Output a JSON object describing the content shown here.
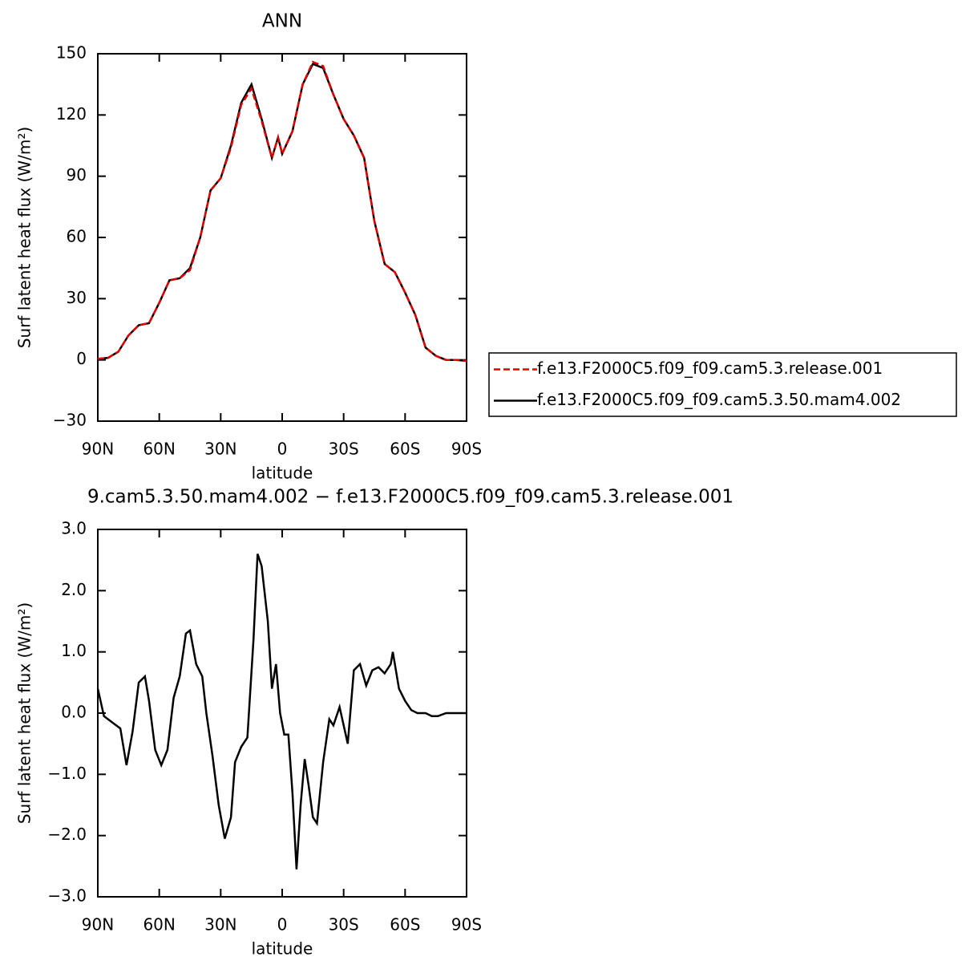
{
  "chart_data": [
    {
      "type": "line",
      "title": "ANN",
      "xlabel": "latitude",
      "ylabel": "Surf latent heat flux (W/m²)",
      "x": [
        90,
        85,
        80,
        75,
        70,
        65,
        60,
        55,
        50,
        45,
        40,
        35,
        30,
        25,
        20,
        15,
        10,
        5,
        2,
        0,
        -5,
        -10,
        -15,
        -20,
        -25,
        -30,
        -35,
        -40,
        -45,
        -50,
        -55,
        -60,
        -65,
        -70,
        -75,
        -80,
        -85,
        -90
      ],
      "series": [
        {
          "name": "f.e13.F2000C5.f09_f09.cam5.3.release.001",
          "color": "#e00000",
          "dashed": true,
          "values": [
            0.5,
            1,
            4,
            12,
            17,
            18,
            28,
            39,
            40,
            44,
            60,
            83,
            89,
            104,
            125,
            133,
            117,
            99,
            109,
            101,
            112,
            135,
            146,
            144,
            130,
            118,
            110,
            99,
            68,
            47,
            43,
            33,
            22,
            6,
            2,
            0,
            0,
            -0.5
          ]
        },
        {
          "name": "f.e13.F2000C5.f09_f09.cam5.3.50.mam4.002",
          "color": "#000000",
          "dashed": false,
          "values": [
            0.5,
            1,
            4,
            12,
            17,
            18,
            28,
            39,
            40,
            45,
            60,
            83,
            89,
            105,
            126,
            135,
            118,
            99,
            109,
            101,
            112,
            135,
            145,
            143,
            130,
            118,
            110,
            99,
            68,
            47,
            43,
            33,
            22,
            6,
            2,
            0,
            0,
            -0.5
          ]
        }
      ],
      "xlim": [
        90,
        -90
      ],
      "xticks": [
        {
          "value": 90,
          "label": "90N"
        },
        {
          "value": 60,
          "label": "60N"
        },
        {
          "value": 30,
          "label": "30N"
        },
        0,
        {
          "value": -30,
          "label": "30S"
        },
        {
          "value": -60,
          "label": "60S"
        },
        {
          "value": -90,
          "label": "90S"
        }
      ],
      "ylim": [
        -30,
        150
      ],
      "yticks": [
        {
          "value": -30,
          "label": "−30"
        },
        0,
        30,
        60,
        90,
        120,
        150
      ],
      "legend": "outside-right"
    },
    {
      "type": "line",
      "title": "9.cam5.3.50.mam4.002 − f.e13.F2000C5.f09_f09.cam5.3.release.001",
      "xlabel": "latitude",
      "ylabel": "Surf latent heat flux (W/m²)",
      "x": [
        90,
        87,
        83,
        79,
        76,
        73,
        70,
        67,
        65,
        62,
        59,
        56,
        53,
        50,
        47,
        45,
        42,
        39,
        37,
        34,
        31,
        28,
        25,
        23,
        20,
        17,
        14,
        12,
        10,
        7,
        5,
        3,
        1,
        -1,
        -3,
        -5,
        -7,
        -9,
        -11,
        -13,
        -15,
        -17,
        -20,
        -23,
        -25,
        -28,
        -30,
        -32,
        -35,
        -38,
        -41,
        -44,
        -47,
        -50,
        -53,
        -54,
        -57,
        -60,
        -63,
        -66,
        -70,
        -73,
        -76,
        -80,
        -90
      ],
      "values": [
        0.4,
        -0.05,
        -0.15,
        -0.25,
        -0.85,
        -0.3,
        0.5,
        0.6,
        0.2,
        -0.6,
        -0.85,
        -0.6,
        0.25,
        0.6,
        1.3,
        1.35,
        0.8,
        0.6,
        0,
        -0.7,
        -1.5,
        -2.05,
        -1.7,
        -0.8,
        -0.55,
        -0.4,
        1.2,
        2.6,
        2.4,
        1.5,
        0.4,
        0.8,
        0,
        -0.35,
        -0.35,
        -1.3,
        -2.55,
        -1.5,
        -0.75,
        -1.2,
        -1.7,
        -1.8,
        -0.8,
        -0.1,
        -0.2,
        0.1,
        -0.2,
        -0.5,
        0.7,
        0.8,
        0.45,
        0.7,
        0.75,
        0.65,
        0.8,
        1.0,
        0.4,
        0.2,
        0.05,
        0,
        0,
        -0.05,
        -0.05,
        0,
        0
      ],
      "color": "#000000",
      "xlim": [
        90,
        -90
      ],
      "xticks": [
        {
          "value": 90,
          "label": "90N"
        },
        {
          "value": 60,
          "label": "60N"
        },
        {
          "value": 30,
          "label": "30N"
        },
        0,
        {
          "value": -30,
          "label": "30S"
        },
        {
          "value": -60,
          "label": "60S"
        },
        {
          "value": -90,
          "label": "90S"
        }
      ],
      "ylim": [
        -3,
        3
      ],
      "yticks": [
        {
          "value": -3,
          "label": "−3.0"
        },
        {
          "value": -2,
          "label": "−2.0"
        },
        {
          "value": -1,
          "label": "−1.0"
        },
        {
          "value": 0,
          "label": "0.0"
        },
        {
          "value": 1,
          "label": "1.0"
        },
        {
          "value": 2,
          "label": "2.0"
        },
        {
          "value": 3,
          "label": "3.0"
        }
      ]
    }
  ]
}
